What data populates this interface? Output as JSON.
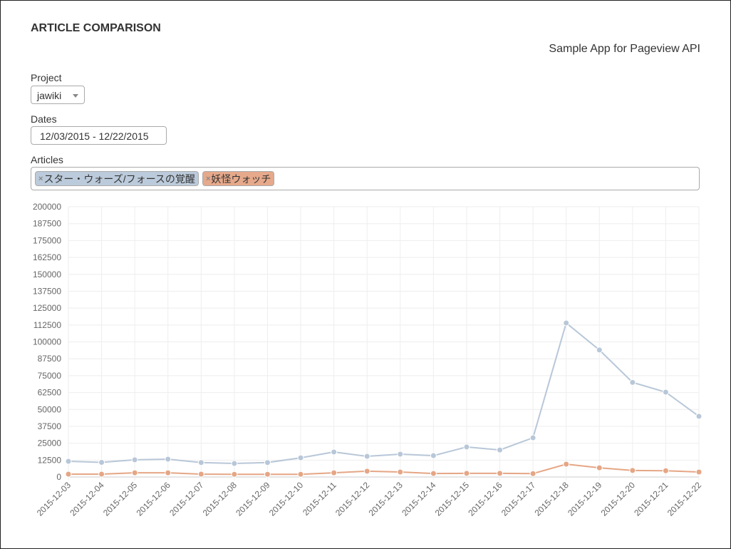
{
  "header": {
    "title": "ARTICLE COMPARISON",
    "subtitle": "Sample App for Pageview API"
  },
  "form": {
    "project_label": "Project",
    "project_value": "jawiki",
    "dates_label": "Dates",
    "dates_value": "12/03/2015 - 12/22/2015",
    "articles_label": "Articles",
    "articles": [
      {
        "label": "スター・ウォーズ/フォースの覚醒",
        "color": "#bccbdb",
        "remove": "×"
      },
      {
        "label": "妖怪ウォッチ",
        "color": "#e6a98b",
        "remove": "×"
      }
    ]
  },
  "chart_data": {
    "type": "line",
    "ylim": [
      0,
      200000
    ],
    "yticks": [
      0,
      12500,
      25000,
      37500,
      50000,
      62500,
      75000,
      87500,
      100000,
      112500,
      125000,
      137500,
      150000,
      162500,
      175000,
      187500,
      200000
    ],
    "grid": true,
    "categories": [
      "2015-12-03",
      "2015-12-04",
      "2015-12-05",
      "2015-12-06",
      "2015-12-07",
      "2015-12-08",
      "2015-12-09",
      "2015-12-10",
      "2015-12-11",
      "2015-12-12",
      "2015-12-13",
      "2015-12-14",
      "2015-12-15",
      "2015-12-16",
      "2015-12-17",
      "2015-12-18",
      "2015-12-19",
      "2015-12-20",
      "2015-12-21",
      "2015-12-22"
    ],
    "series": [
      {
        "color": "#b8c7d8",
        "values": [
          11600,
          10800,
          12700,
          13200,
          10700,
          10000,
          10700,
          14200,
          18500,
          15300,
          16900,
          15800,
          22200,
          20000,
          29000,
          114000,
          94000,
          70000,
          62800,
          44900
        ]
      },
      {
        "color": "#e5a685",
        "values": [
          2100,
          2100,
          3100,
          3100,
          2100,
          2000,
          2000,
          2000,
          3100,
          4300,
          3700,
          2600,
          2700,
          2700,
          2500,
          9500,
          6800,
          4800,
          4600,
          3700
        ]
      }
    ]
  }
}
